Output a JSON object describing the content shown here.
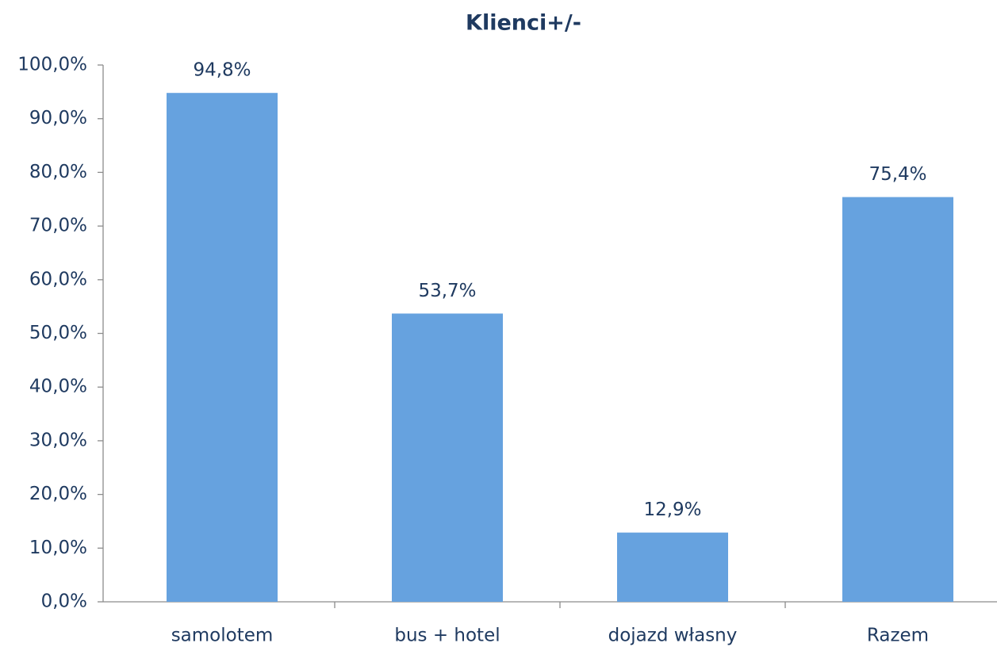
{
  "chart_data": {
    "type": "bar",
    "title": "Klienci+/-",
    "categories": [
      "samolotem",
      "bus + hotel",
      "dojazd własny",
      "Razem"
    ],
    "values": [
      94.8,
      53.7,
      12.9,
      75.4
    ],
    "value_labels": [
      "94,8%",
      "53,7%",
      "12,9%",
      "75,4%"
    ],
    "color": "#66a2df",
    "ylim": [
      0,
      100
    ],
    "yticks": [
      {
        "value": 0,
        "label": "0,0%"
      },
      {
        "value": 10,
        "label": "10,0%"
      },
      {
        "value": 20,
        "label": "20,0%"
      },
      {
        "value": 30,
        "label": "30,0%"
      },
      {
        "value": 40,
        "label": "40,0%"
      },
      {
        "value": 50,
        "label": "50,0%"
      },
      {
        "value": 60,
        "label": "60,0%"
      },
      {
        "value": 70,
        "label": "70,0%"
      },
      {
        "value": 80,
        "label": "80,0%"
      },
      {
        "value": 90,
        "label": "90,0%"
      },
      {
        "value": 100,
        "label": "100,0%"
      }
    ],
    "grid": false
  }
}
